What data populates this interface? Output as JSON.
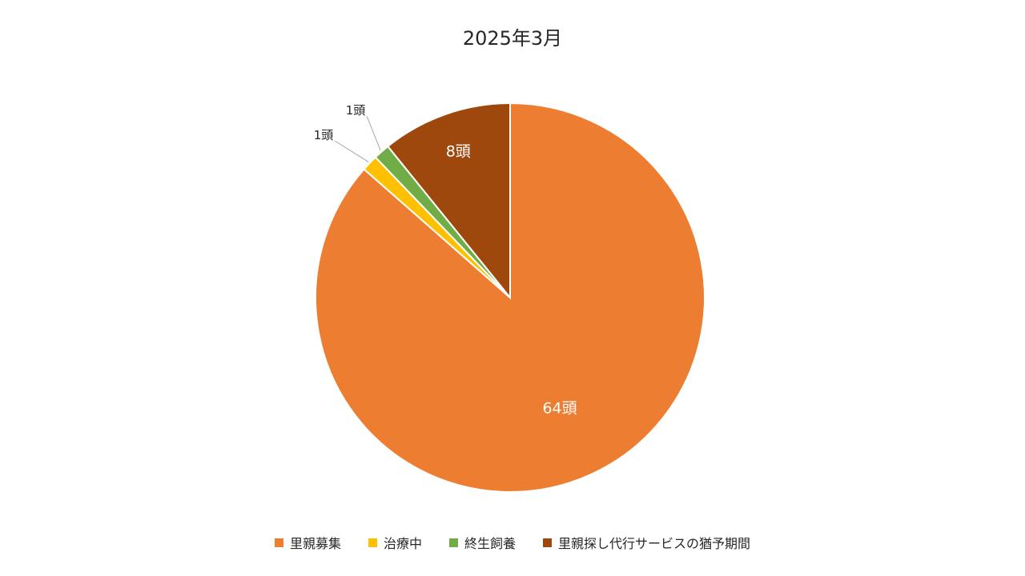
{
  "chart_data": {
    "type": "pie",
    "title": "2025年3月",
    "categories": [
      "里親募集",
      "治療中",
      "終生飼養",
      "里親探し代行サービスの猶予期間"
    ],
    "values": [
      64,
      1,
      1,
      8
    ],
    "data_labels": [
      "64頭",
      "1頭",
      "1頭",
      "8頭"
    ],
    "colors": [
      "#ED7D31",
      "#FFC000",
      "#70AD47",
      "#9E480E"
    ],
    "start_angle_deg": 0,
    "direction": "clockwise",
    "legend_position": "bottom"
  }
}
